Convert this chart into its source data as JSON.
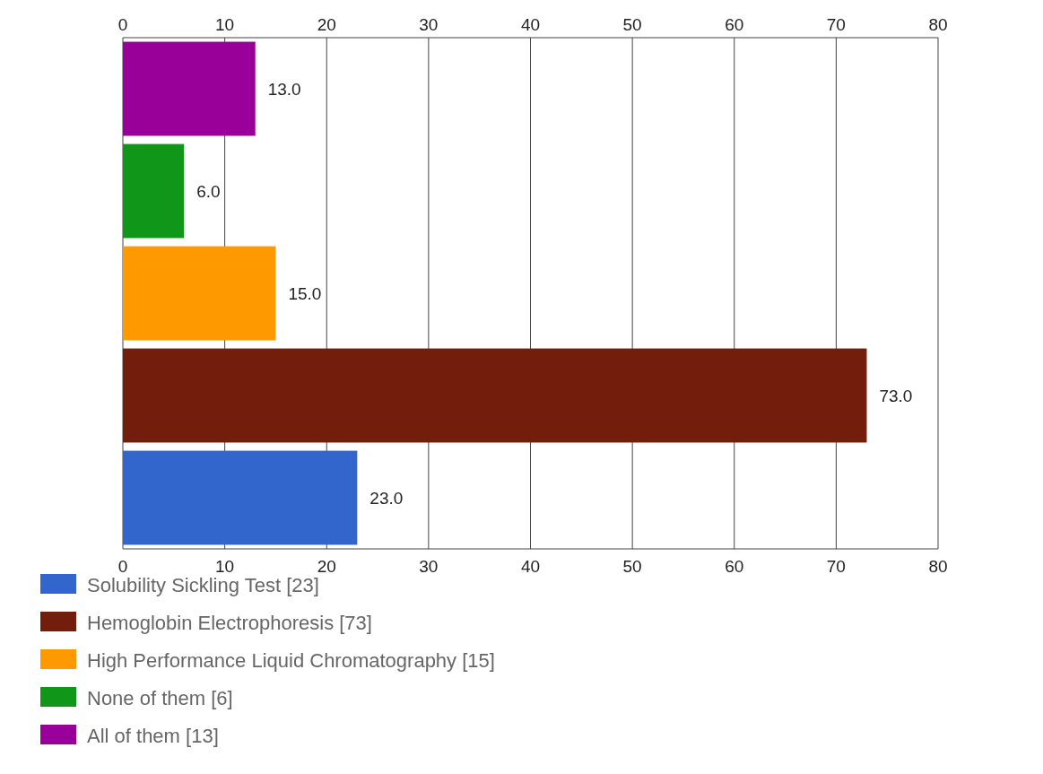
{
  "chart_data": {
    "type": "bar",
    "orientation": "horizontal",
    "categories": [
      null,
      null,
      null,
      null,
      null
    ],
    "series": [
      {
        "name": "Solubility Sickling Test  [23]",
        "color": "#3366cc",
        "values": [
          null,
          null,
          null,
          null,
          23
        ],
        "value_labels": [
          null,
          null,
          null,
          null,
          "23.0"
        ]
      },
      {
        "name": "Hemoglobin Electrophoresis  [73]",
        "color": "#731d0c",
        "values": [
          null,
          null,
          null,
          73,
          null
        ],
        "value_labels": [
          null,
          null,
          null,
          "73.0",
          null
        ]
      },
      {
        "name": "High Performance Liquid Chromatography  [15]",
        "color": "#ff9900",
        "values": [
          null,
          null,
          15,
          null,
          null
        ],
        "value_labels": [
          null,
          null,
          "15.0",
          null,
          null
        ]
      },
      {
        "name": "None of them  [6]",
        "color": "#109618",
        "values": [
          null,
          6,
          null,
          null,
          null
        ],
        "value_labels": [
          null,
          "6.0",
          null,
          null,
          null
        ]
      },
      {
        "name": "All of them  [13]",
        "color": "#990099",
        "values": [
          13,
          null,
          null,
          null,
          null
        ],
        "value_labels": [
          "13.0",
          null,
          null,
          null,
          null
        ]
      }
    ],
    "xlim": [
      0,
      80
    ],
    "xticks": [
      0,
      10,
      20,
      30,
      40,
      50,
      60,
      70,
      80
    ],
    "x2lim": [
      0,
      80
    ],
    "x2ticks": [
      0,
      10,
      20,
      30,
      40,
      50,
      60,
      70,
      80
    ],
    "grid": "x",
    "legend": "bottom"
  }
}
